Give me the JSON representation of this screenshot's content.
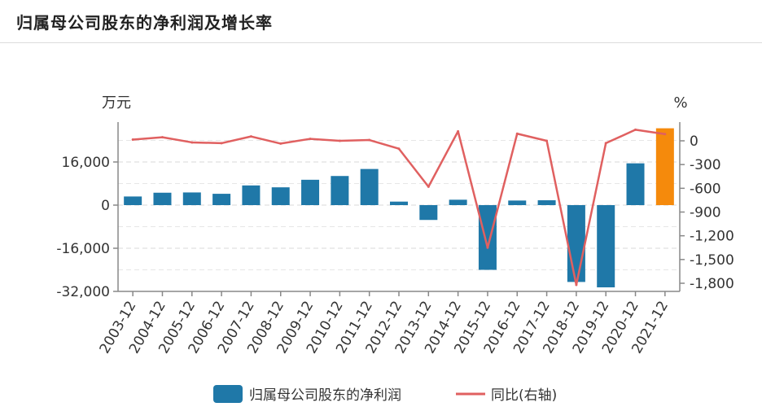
{
  "chart_data": {
    "type": "bar",
    "title": "归属母公司股东的净利润及增长率",
    "categories": [
      "2003-12",
      "2004-12",
      "2005-12",
      "2006-12",
      "2007-12",
      "2008-12",
      "2009-12",
      "2010-12",
      "2011-12",
      "2012-12",
      "2013-12",
      "2014-12",
      "2015-12",
      "2016-12",
      "2017-12",
      "2018-12",
      "2019-12",
      "2020-12",
      "2021-12"
    ],
    "series": [
      {
        "name": "归属母公司股东的净利润",
        "type": "bar",
        "axis": "left",
        "color": "#1f78a8",
        "highlight_color": "#f58a0c",
        "highlight_index": 18,
        "values": [
          3200,
          4600,
          4700,
          4200,
          7300,
          6600,
          9400,
          10800,
          13400,
          1300,
          -5500,
          2000,
          -24000,
          1700,
          1800,
          -28500,
          -30500,
          15500,
          28500
        ]
      },
      {
        "name": "同比(右轴)",
        "type": "line",
        "axis": "right",
        "color": "#e06060",
        "values": [
          15,
          45,
          -20,
          -30,
          55,
          -35,
          25,
          0,
          10,
          -100,
          -580,
          120,
          -1350,
          90,
          0,
          -1820,
          -30,
          140,
          85
        ]
      }
    ],
    "left_axis": {
      "unit": "万元",
      "ylim": [
        -32000,
        32000
      ],
      "ticks": [
        -32000,
        -16000,
        0,
        16000
      ],
      "tick_labels": [
        "-32,000",
        "-16,000",
        "0",
        "16,000"
      ]
    },
    "right_axis": {
      "unit": "%",
      "ylim": [
        -1800,
        1400
      ],
      "ticks": [
        -1800,
        -1500,
        -1200,
        -900,
        -600,
        -300,
        0
      ],
      "tick_labels": [
        "-1,800",
        "-1,500",
        "-1,200",
        "-900",
        "-600",
        "-300",
        "0"
      ]
    },
    "grid": true,
    "legend_position": "bottom"
  }
}
